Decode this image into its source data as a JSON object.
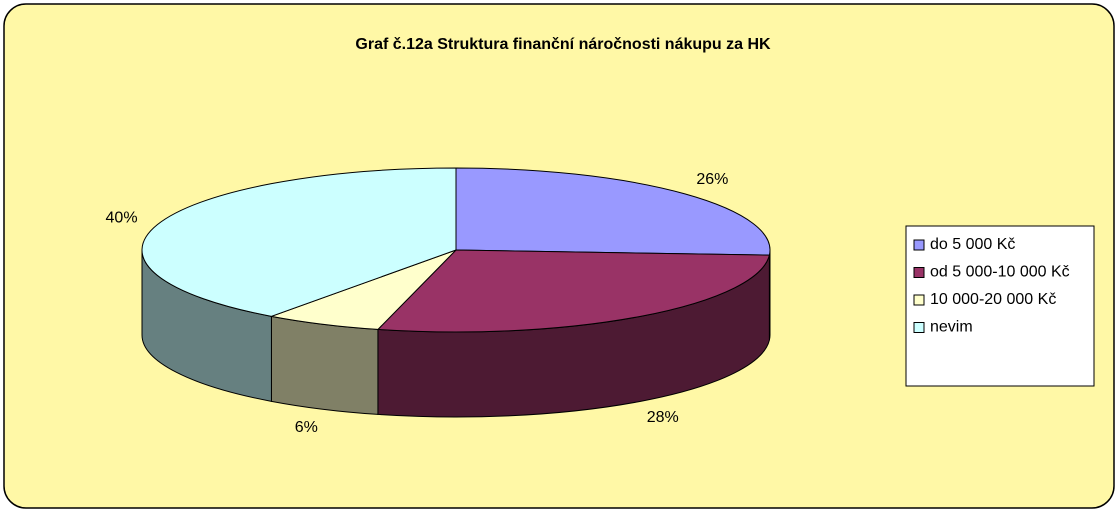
{
  "chart_data": {
    "type": "pie",
    "title": "Graf č.12a Struktura finanční náročnosti nákupu za HK",
    "categories": [
      "do 5 000 Kč",
      "od 5 000-10 000 Kč",
      "10 000-20 000 Kč",
      "nevim"
    ],
    "values": [
      26,
      28,
      6,
      40
    ],
    "value_labels": [
      "26%",
      "28%",
      "6%",
      "40%"
    ],
    "colors": [
      "#9999ff",
      "#993366",
      "#ffffcc",
      "#ccffff"
    ],
    "legend": "right",
    "three_d": true
  }
}
